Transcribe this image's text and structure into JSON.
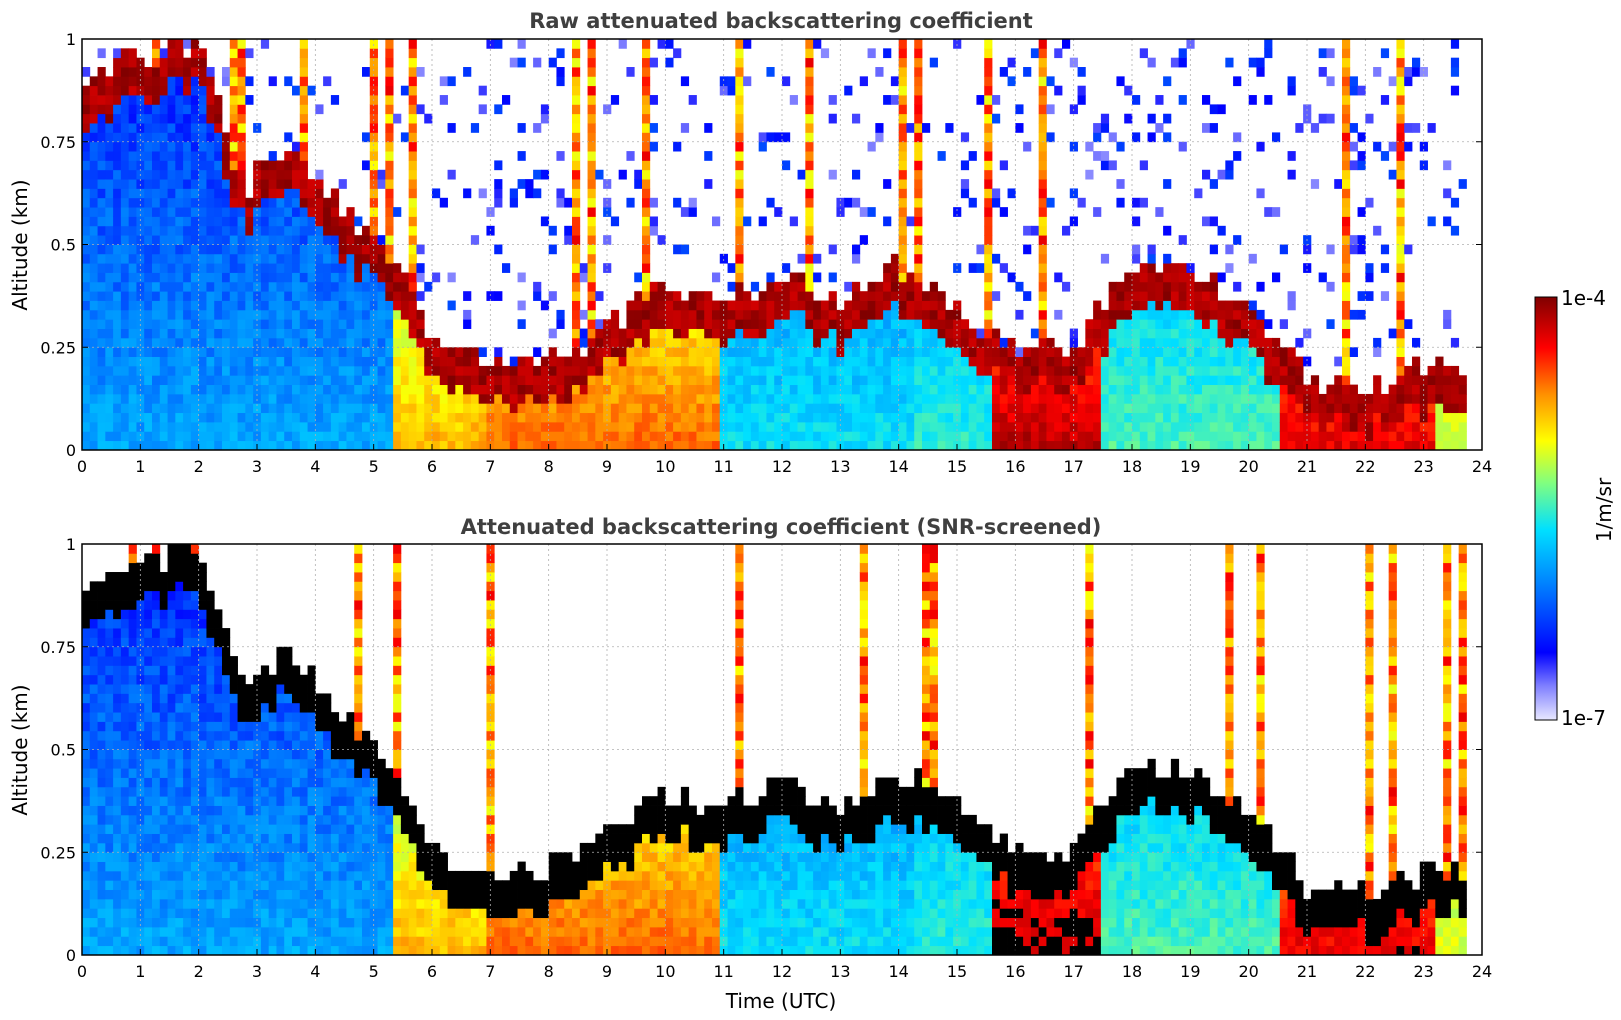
{
  "chart_data": [
    {
      "type": "heatmap",
      "title": "Raw attenuated backscattering coefficient",
      "xlabel": "",
      "ylabel": "Altitude (km)",
      "xlim": [
        0,
        24
      ],
      "ylim": [
        0,
        1
      ],
      "xticks": [
        0,
        1,
        2,
        3,
        4,
        5,
        6,
        7,
        8,
        9,
        10,
        11,
        12,
        13,
        14,
        15,
        16,
        17,
        18,
        19,
        20,
        21,
        22,
        23,
        24
      ],
      "yticks": [
        0,
        0.25,
        0.5,
        0.75,
        1
      ],
      "ytick_labels": [
        "0",
        "0.25",
        "0.5",
        "0.75",
        "1"
      ],
      "grid": true,
      "screened": false,
      "cloud_layers": [
        {
          "t": 0,
          "h": 0.86
        },
        {
          "t": 1,
          "h": 0.9
        },
        {
          "t": 2,
          "h": 0.95
        },
        {
          "t": 2.8,
          "h": 0.58
        },
        {
          "t": 3.5,
          "h": 0.7
        },
        {
          "t": 4,
          "h": 0.62
        },
        {
          "t": 4.5,
          "h": 0.52
        },
        {
          "t": 5,
          "h": 0.45
        },
        {
          "t": 5.5,
          "h": 0.37
        },
        {
          "t": 6,
          "h": 0.2
        },
        {
          "t": 7,
          "h": 0.15
        },
        {
          "t": 8,
          "h": 0.16
        },
        {
          "t": 9,
          "h": 0.25
        },
        {
          "t": 10,
          "h": 0.35
        },
        {
          "t": 11,
          "h": 0.3
        },
        {
          "t": 12,
          "h": 0.38
        },
        {
          "t": 13,
          "h": 0.3
        },
        {
          "t": 14,
          "h": 0.4
        },
        {
          "t": 15,
          "h": 0.3
        },
        {
          "t": 16,
          "h": 0.2
        },
        {
          "t": 17,
          "h": 0.2
        },
        {
          "t": 18,
          "h": 0.4
        },
        {
          "t": 19,
          "h": 0.4
        },
        {
          "t": 20,
          "h": 0.3
        },
        {
          "t": 21,
          "h": 0.12
        },
        {
          "t": 22,
          "h": 0.1
        },
        {
          "t": 23,
          "h": 0.15
        },
        {
          "t": 23.7,
          "h": 0.16
        }
      ]
    },
    {
      "type": "heatmap",
      "title": "Attenuated backscattering coefficient (SNR-screened)",
      "xlabel": "Time (UTC)",
      "ylabel": "Altitude (km)",
      "xlim": [
        0,
        24
      ],
      "ylim": [
        0,
        1
      ],
      "xticks": [
        0,
        1,
        2,
        3,
        4,
        5,
        6,
        7,
        8,
        9,
        10,
        11,
        12,
        13,
        14,
        15,
        16,
        17,
        18,
        19,
        20,
        21,
        22,
        23,
        24
      ],
      "yticks": [
        0,
        0.25,
        0.5,
        0.75,
        1
      ],
      "ytick_labels": [
        "0",
        "0.25",
        "0.5",
        "0.75",
        "1"
      ],
      "grid": true,
      "screened": true
    }
  ],
  "colorbar": {
    "label": "1/m/sr",
    "max_label": "1e-4",
    "min_label": "1e-7",
    "range": [
      1e-07,
      0.0001
    ],
    "scale": "log",
    "colormap": [
      "#e8e8ff",
      "#0000ff",
      "#0080ff",
      "#00e0ff",
      "#80ff80",
      "#ffff00",
      "#ff8000",
      "#ff0000",
      "#800000"
    ]
  }
}
